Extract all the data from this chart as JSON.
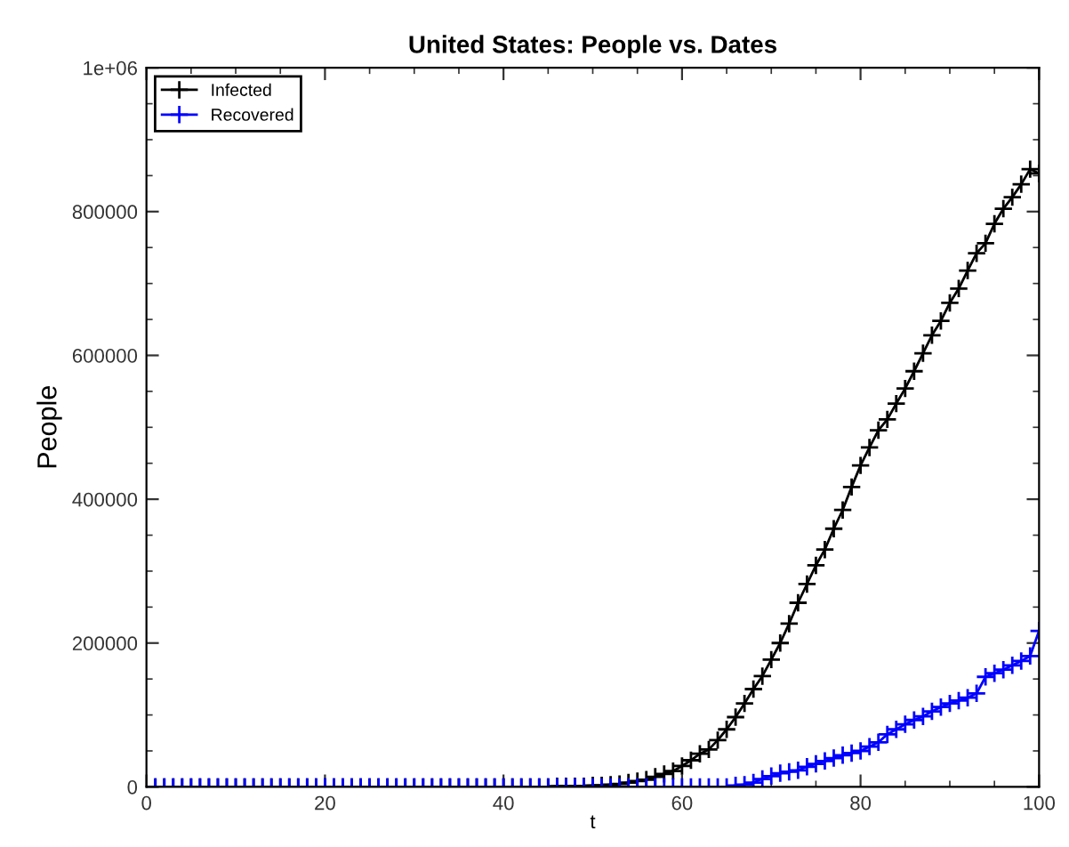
{
  "chart_data": {
    "type": "line",
    "title": "United States: People vs. Dates",
    "xlabel": "t",
    "ylabel": "People",
    "x": [
      1,
      2,
      3,
      4,
      5,
      6,
      7,
      8,
      9,
      10,
      11,
      12,
      13,
      14,
      15,
      16,
      17,
      18,
      19,
      20,
      21,
      22,
      23,
      24,
      25,
      26,
      27,
      28,
      29,
      30,
      31,
      32,
      33,
      34,
      35,
      36,
      37,
      38,
      39,
      40,
      41,
      42,
      43,
      44,
      45,
      46,
      47,
      48,
      49,
      50,
      51,
      52,
      53,
      54,
      55,
      56,
      57,
      58,
      59,
      60,
      61,
      62,
      63,
      64,
      65,
      66,
      67,
      68,
      69,
      70,
      71,
      72,
      73,
      74,
      75,
      76,
      77,
      78,
      79,
      80,
      81,
      82,
      83,
      84,
      85,
      86,
      87,
      88,
      89,
      90,
      91,
      92,
      93,
      94,
      95,
      96,
      97,
      98,
      99,
      100
    ],
    "series": [
      {
        "name": "Infected",
        "color": "#000000",
        "values": [
          0,
          0,
          0,
          0,
          0,
          0,
          0,
          0,
          0,
          0,
          0,
          0,
          0,
          0,
          0,
          0,
          0,
          0,
          0,
          0,
          0,
          0,
          0,
          0,
          0,
          0,
          0,
          0,
          0,
          0,
          0,
          0,
          0,
          0,
          0,
          0,
          0,
          0,
          0,
          0,
          0,
          0,
          0,
          0,
          0,
          1000,
          1000,
          1000,
          1000,
          2000,
          2000,
          3000,
          4000,
          6000,
          8000,
          10000,
          14000,
          18000,
          22000,
          29000,
          37000,
          46000,
          52000,
          65000,
          80000,
          97000,
          116000,
          136000,
          154000,
          177000,
          200000,
          227000,
          256000,
          282000,
          308000,
          330000,
          359000,
          385000,
          417000,
          447000,
          472000,
          496000,
          511000,
          533000,
          554000,
          578000,
          603000,
          628000,
          648000,
          673000,
          693000,
          718000,
          742000,
          756000,
          783000,
          804000,
          820000,
          838000,
          859000,
          853000
        ]
      },
      {
        "name": "Recovered",
        "color": "#0000ff",
        "values": [
          0,
          0,
          0,
          0,
          0,
          0,
          0,
          0,
          0,
          0,
          0,
          0,
          0,
          0,
          0,
          0,
          0,
          0,
          0,
          0,
          0,
          0,
          0,
          0,
          0,
          0,
          0,
          0,
          0,
          0,
          0,
          0,
          0,
          0,
          0,
          0,
          0,
          0,
          0,
          0,
          0,
          0,
          0,
          0,
          0,
          0,
          0,
          0,
          0,
          0,
          0,
          0,
          0,
          0,
          0,
          0,
          0,
          0,
          0,
          0,
          0,
          0,
          0,
          0,
          0,
          2000,
          3000,
          6000,
          11000,
          15000,
          19000,
          21000,
          23000,
          28000,
          32000,
          36000,
          40000,
          44000,
          47000,
          50000,
          56000,
          62000,
          73000,
          80000,
          87000,
          93000,
          98000,
          105000,
          111000,
          116000,
          120000,
          124000,
          130000,
          153000,
          158000,
          163000,
          169000,
          175000,
          182000,
          217000
        ]
      }
    ],
    "xlim": [
      0,
      100
    ],
    "xticks": [
      0,
      20,
      40,
      60,
      80,
      100
    ],
    "ylim": [
      0,
      1000000
    ],
    "yticks": [
      0,
      200000,
      400000,
      600000,
      800000,
      {
        "value": 1000000,
        "label": "1e+06"
      }
    ],
    "marker": "cross",
    "line_style": "solid",
    "legend": "top left",
    "grid": false
  }
}
